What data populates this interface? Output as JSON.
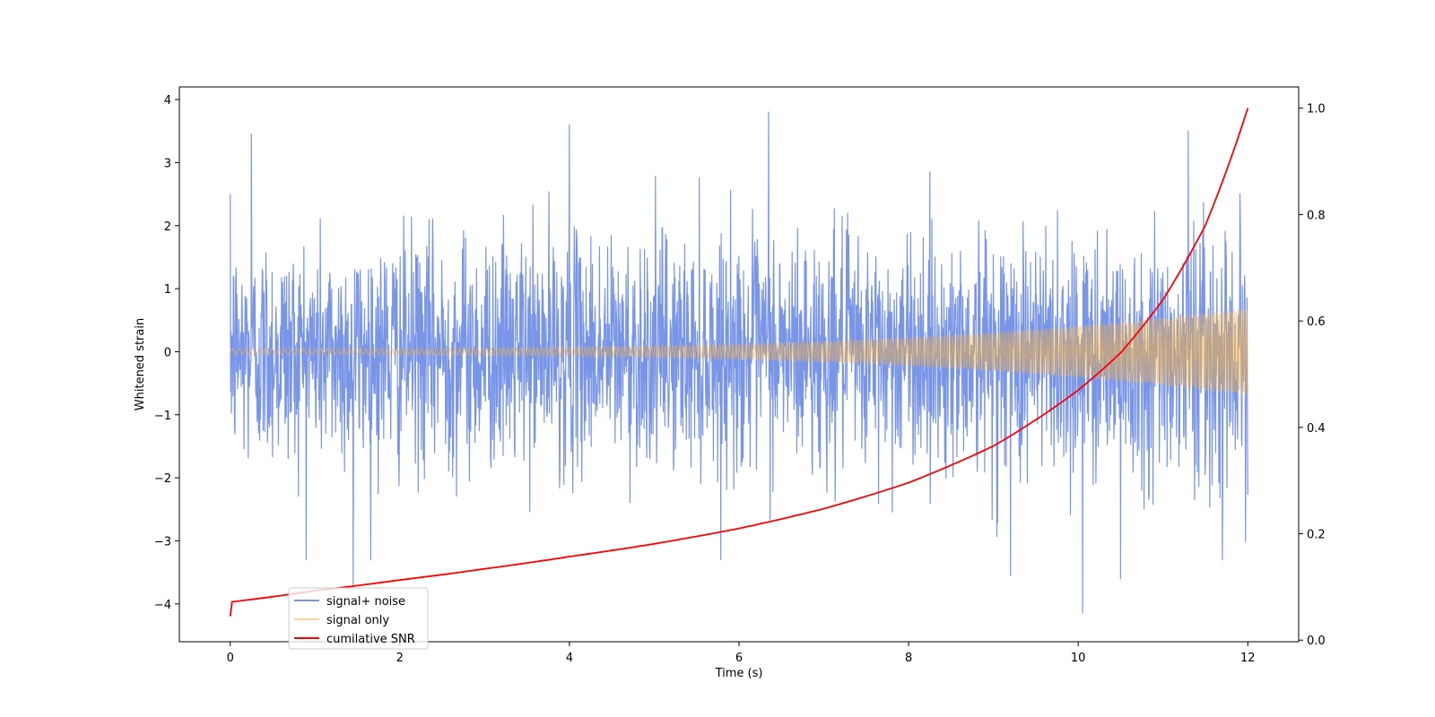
{
  "chart_data": {
    "type": "line",
    "xlabel": "Time (s)",
    "ylabel": "Whitened strain",
    "y2label": "",
    "xlim": [
      -0.6,
      12.6
    ],
    "ylim": [
      -4.6,
      4.2
    ],
    "y2lim": [
      -0.003,
      1.04
    ],
    "x_ticks": [
      0,
      2,
      4,
      6,
      8,
      10,
      12
    ],
    "y_ticks": [
      -4,
      -3,
      -2,
      -1,
      0,
      1,
      2,
      3,
      4
    ],
    "y2_ticks": [
      0.0,
      0.2,
      0.4,
      0.6,
      0.8,
      1.0
    ],
    "legend_position": "lower-left",
    "grid": false,
    "series": [
      {
        "name": "signal+ noise",
        "axis": "left",
        "color": "#7895e8",
        "style": "dense noisy strain, roughly Gaussian with sigma ~0.9",
        "t_range": [
          0,
          12
        ],
        "extremes": [
          {
            "x": 0.25,
            "y": 3.45
          },
          {
            "x": 4.0,
            "y": 3.6
          },
          {
            "x": 6.35,
            "y": 3.8
          },
          {
            "x": 11.3,
            "y": 3.5
          },
          {
            "x": 1.45,
            "y": -3.75
          },
          {
            "x": 10.05,
            "y": -4.15
          },
          {
            "x": 10.5,
            "y": -3.6
          },
          {
            "x": 9.2,
            "y": -3.55
          }
        ]
      },
      {
        "name": "signal only",
        "axis": "left",
        "color": "#f5b041",
        "style": "chirp oscillation with growing amplitude",
        "t_range": [
          0,
          12
        ],
        "amplitude_start": 0.05,
        "amplitude_end": 0.7
      },
      {
        "name": "cumilative SNR",
        "axis": "right",
        "color": "#ff0000",
        "x": [
          0,
          0.02,
          1,
          2,
          3,
          4,
          5,
          6,
          7,
          8,
          9,
          10,
          10.5,
          11,
          11.5,
          12
        ],
        "values": [
          0.045,
          0.072,
          0.093,
          0.113,
          0.134,
          0.157,
          0.181,
          0.21,
          0.247,
          0.296,
          0.365,
          0.47,
          0.54,
          0.64,
          0.78,
          1.0
        ]
      }
    ]
  }
}
